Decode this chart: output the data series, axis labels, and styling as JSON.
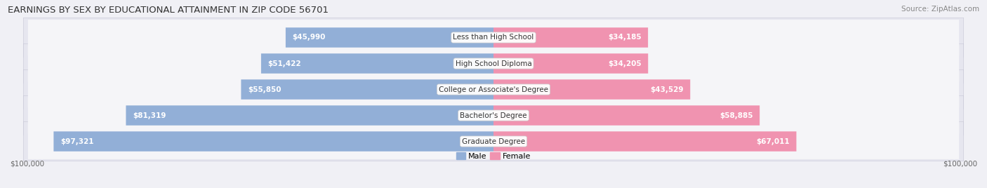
{
  "title": "EARNINGS BY SEX BY EDUCATIONAL ATTAINMENT IN ZIP CODE 56701",
  "source": "Source: ZipAtlas.com",
  "categories": [
    "Less than High School",
    "High School Diploma",
    "College or Associate's Degree",
    "Bachelor's Degree",
    "Graduate Degree"
  ],
  "male_values": [
    45990,
    51422,
    55850,
    81319,
    97321
  ],
  "female_values": [
    34185,
    34205,
    43529,
    58885,
    67011
  ],
  "male_color": "#92afd7",
  "female_color": "#f093b0",
  "male_color_dark": "#6b94c8",
  "female_color_dark": "#e8789a",
  "row_bg_color": "#e8e8ee",
  "max_value": 100000,
  "x_tick_label": "$100,000",
  "male_label": "Male",
  "female_label": "Female",
  "title_fontsize": 9.5,
  "source_fontsize": 7.5,
  "bar_label_fontsize": 7.5,
  "category_fontsize": 7.5,
  "tick_fontsize": 7.5,
  "legend_fontsize": 8
}
